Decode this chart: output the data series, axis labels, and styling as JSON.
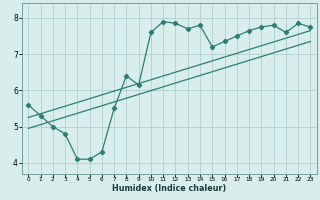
{
  "xlabel": "Humidex (Indice chaleur)",
  "ylabel": "",
  "bg_color": "#d8eeed",
  "grid_color": "#b8d4d2",
  "line_color": "#2e7d74",
  "xlim": [
    -0.5,
    23.5
  ],
  "ylim": [
    3.7,
    8.4
  ],
  "xticks": [
    0,
    1,
    2,
    3,
    4,
    5,
    6,
    7,
    8,
    9,
    10,
    11,
    12,
    13,
    14,
    15,
    16,
    17,
    18,
    19,
    20,
    21,
    22,
    23
  ],
  "yticks": [
    4,
    5,
    6,
    7,
    8
  ],
  "line1_x": [
    0,
    1,
    2,
    3,
    4,
    5,
    6,
    7,
    8,
    9,
    10,
    11,
    12,
    13,
    14,
    15,
    16,
    17,
    18,
    19,
    20,
    21,
    22,
    23
  ],
  "line1_y": [
    5.6,
    5.3,
    5.0,
    4.8,
    4.1,
    4.1,
    4.3,
    5.5,
    6.4,
    6.15,
    7.6,
    7.9,
    7.85,
    7.7,
    7.8,
    7.2,
    7.35,
    7.5,
    7.65,
    7.75,
    7.8,
    7.6,
    7.85,
    7.75
  ],
  "line2_x": [
    0,
    23
  ],
  "line2_y": [
    5.25,
    7.65
  ],
  "line3_x": [
    0,
    23
  ],
  "line3_y": [
    4.95,
    7.35
  ]
}
